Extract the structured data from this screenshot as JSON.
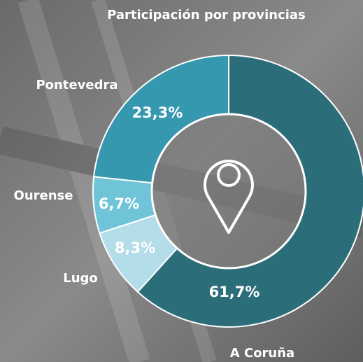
{
  "chart_data": {
    "type": "donut",
    "title": "Participación por provincias",
    "categories": [
      "A Coruña",
      "Lugo",
      "Ourense",
      "Pontevedra"
    ],
    "values": [
      61.7,
      8.3,
      6.7,
      23.3
    ],
    "value_labels": [
      "61,7%",
      "8,3%",
      "6,7%",
      "23,3%"
    ],
    "colors": [
      "#2b6e79",
      "#b3dde8",
      "#6fc4d8",
      "#3698ae"
    ]
  }
}
